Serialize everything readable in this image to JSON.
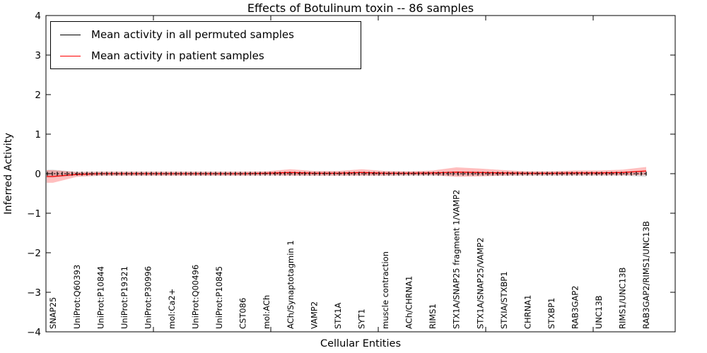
{
  "chart_data": {
    "type": "line",
    "title": "Effects of Botulinum toxin -- 86 samples",
    "xlabel": "Cellular Entities",
    "ylabel": "Inferred Activity",
    "ylim": [
      -4,
      4
    ],
    "yticks": [
      4,
      3,
      2,
      1,
      0,
      -1,
      -2,
      -3,
      -4
    ],
    "grid": false,
    "legend_position": "upper left",
    "categories": [
      "SNAP25",
      "UniProt:Q60393",
      "UniProt:P10844",
      "UniProt:P19321",
      "UniProt:P30996",
      "mol:Ca2+",
      "UniProt:Q00496",
      "UniProt:P10845",
      "CST086",
      "mol:ACh",
      "ACh/Synaptotagmin 1",
      "VAMP2",
      "STX1A",
      "SYT1",
      "muscle contraction",
      "ACh/CHRNA1",
      "RIMS1",
      "STX1A/SNAP25 fragment 1/VAMP2",
      "STX1A/SNAP25/VAMP2",
      "STXIA/STXBP1",
      "CHRNA1",
      "STXBP1",
      "RAB3GAP2",
      "UNC13B",
      "RIMS1/UNC13B",
      "RAB3GAP2/RIMS1/UNC13B"
    ],
    "series": [
      {
        "name": "Mean activity in all permuted samples",
        "color": "#000000",
        "line_style": "dashed with tick markers",
        "band_color": "rgba(0,0,0,0.13)",
        "values": [
          0,
          0,
          0,
          0,
          0,
          0,
          0,
          0,
          0,
          0,
          0,
          0,
          0,
          0,
          0,
          0,
          0,
          0,
          0,
          0,
          0,
          0,
          0,
          0,
          0,
          0
        ],
        "band_halfwidth": [
          0.1,
          0.05,
          0.05,
          0.05,
          0.05,
          0.05,
          0.05,
          0.05,
          0.05,
          0.05,
          0.05,
          0.05,
          0.05,
          0.05,
          0.05,
          0.05,
          0.05,
          0.05,
          0.05,
          0.05,
          0.05,
          0.05,
          0.05,
          0.05,
          0.05,
          0.08
        ]
      },
      {
        "name": "Mean activity in patient samples",
        "color": "#ff0000",
        "line_style": "solid",
        "band_color": "rgba(255,0,0,0.25)",
        "values": [
          -0.07,
          -0.02,
          0,
          0,
          0,
          0,
          0,
          0,
          0,
          0.01,
          0.03,
          0.01,
          0.01,
          0.03,
          0.01,
          0.01,
          0.02,
          0.04,
          0.03,
          0.02,
          0.01,
          0.01,
          0.02,
          0.02,
          0.03,
          0.07
        ],
        "band_halfwidth": [
          0.16,
          0.06,
          0.05,
          0.05,
          0.05,
          0.05,
          0.05,
          0.05,
          0.05,
          0.05,
          0.08,
          0.06,
          0.06,
          0.08,
          0.06,
          0.05,
          0.06,
          0.12,
          0.1,
          0.07,
          0.05,
          0.05,
          0.06,
          0.06,
          0.07,
          0.1
        ]
      }
    ]
  }
}
